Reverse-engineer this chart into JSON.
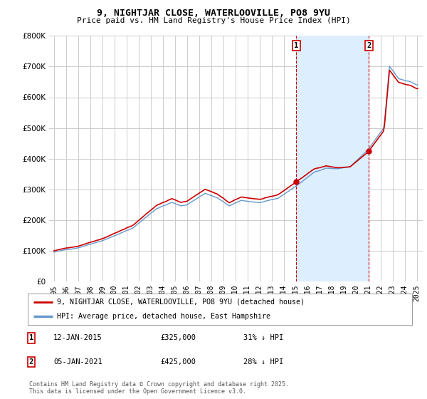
{
  "title": "9, NIGHTJAR CLOSE, WATERLOOVILLE, PO8 9YU",
  "subtitle": "Price paid vs. HM Land Registry's House Price Index (HPI)",
  "legend_line1": "9, NIGHTJAR CLOSE, WATERLOOVILLE, PO8 9YU (detached house)",
  "legend_line2": "HPI: Average price, detached house, East Hampshire",
  "annotation1_label": "1",
  "annotation1_date": "12-JAN-2015",
  "annotation1_price": "£325,000",
  "annotation1_hpi": "31% ↓ HPI",
  "annotation1_year": 2015.04,
  "annotation1_value": 325000,
  "annotation2_label": "2",
  "annotation2_date": "05-JAN-2021",
  "annotation2_price": "£425,000",
  "annotation2_hpi": "28% ↓ HPI",
  "annotation2_year": 2021.04,
  "annotation2_value": 425000,
  "footnote": "Contains HM Land Registry data © Crown copyright and database right 2025.\nThis data is licensed under the Open Government Licence v3.0.",
  "hpi_color": "#6699cc",
  "hpi_fill_color": "#ddeeff",
  "highlight_fill_color": "#ddeeff",
  "price_color": "#cc0000",
  "vline_color": "#cc0000",
  "background_color": "#ffffff",
  "grid_color": "#cccccc",
  "ylim": [
    0,
    800000
  ],
  "yticks": [
    0,
    100000,
    200000,
    300000,
    400000,
    500000,
    600000,
    700000,
    800000
  ],
  "xlim_start": 1994.6,
  "xlim_end": 2025.5,
  "xtick_years": [
    1995,
    1996,
    1997,
    1998,
    1999,
    2000,
    2001,
    2002,
    2003,
    2004,
    2005,
    2006,
    2007,
    2008,
    2009,
    2010,
    2011,
    2012,
    2013,
    2014,
    2015,
    2016,
    2017,
    2018,
    2019,
    2020,
    2021,
    2022,
    2023,
    2024,
    2025
  ],
  "sale1_year": 2015.04,
  "sale1_value": 325000,
  "sale2_year": 2021.04,
  "sale2_value": 425000
}
